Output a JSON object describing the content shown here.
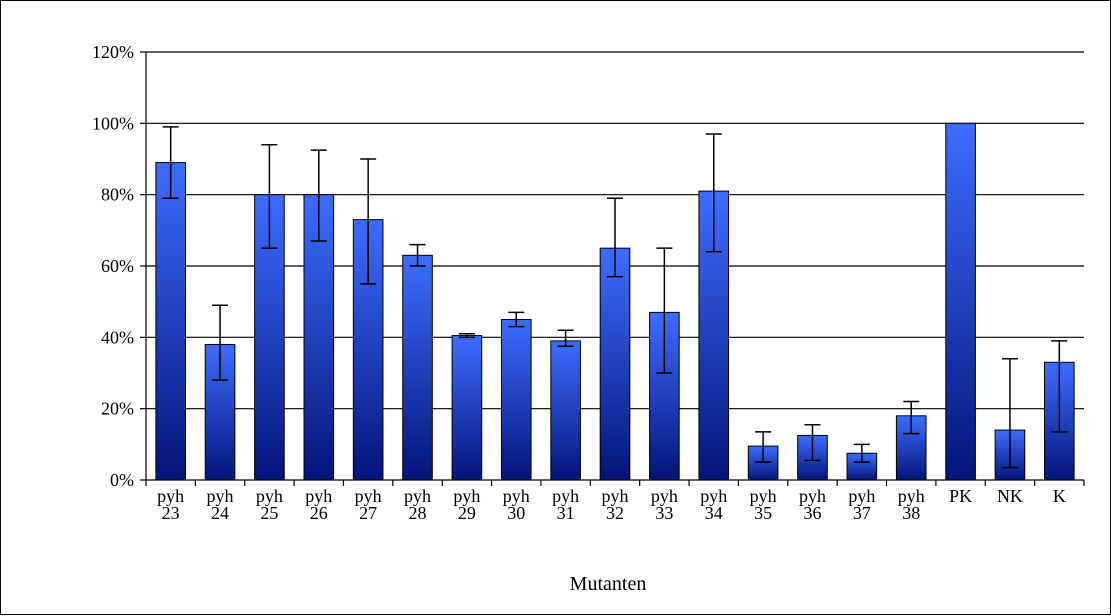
{
  "chart_data": {
    "type": "bar",
    "title": "",
    "xlabel": "Mutanten",
    "ylabel": "",
    "ylim": [
      0,
      120
    ],
    "yticks": [
      0,
      20,
      40,
      60,
      80,
      100,
      120
    ],
    "ytick_suffix": "%",
    "grid": true,
    "legend": "none",
    "bar_color_top": "#3d6dff",
    "bar_color_bottom": "#04147a",
    "categories": [
      [
        "pyh",
        "23"
      ],
      [
        "pyh",
        "24"
      ],
      [
        "pyh",
        "25"
      ],
      [
        "pyh",
        "26"
      ],
      [
        "pyh",
        "27"
      ],
      [
        "pyh",
        "28"
      ],
      [
        "pyh",
        "29"
      ],
      [
        "pyh",
        "30"
      ],
      [
        "pyh",
        "31"
      ],
      [
        "pyh",
        "32"
      ],
      [
        "pyh",
        "33"
      ],
      [
        "pyh",
        "34"
      ],
      [
        "pyh",
        "35"
      ],
      [
        "pyh",
        "36"
      ],
      [
        "pyh",
        "37"
      ],
      [
        "pyh",
        "38"
      ],
      [
        "PK"
      ],
      [
        "NK"
      ],
      [
        "K"
      ]
    ],
    "values": [
      89,
      38,
      80,
      80,
      73,
      63,
      40.5,
      45,
      39,
      65,
      47,
      81,
      9.5,
      12.5,
      7.5,
      18,
      100,
      14,
      33
    ],
    "error_low": [
      79,
      28,
      65,
      67,
      55,
      60,
      40,
      43,
      37.5,
      57,
      30,
      64,
      5,
      5.5,
      5,
      13,
      100,
      3.5,
      13.5
    ],
    "error_high": [
      99,
      49,
      94,
      92.5,
      90,
      66,
      41,
      47,
      42,
      79,
      65,
      97,
      13.5,
      15.5,
      10,
      22,
      100,
      34,
      39
    ]
  }
}
